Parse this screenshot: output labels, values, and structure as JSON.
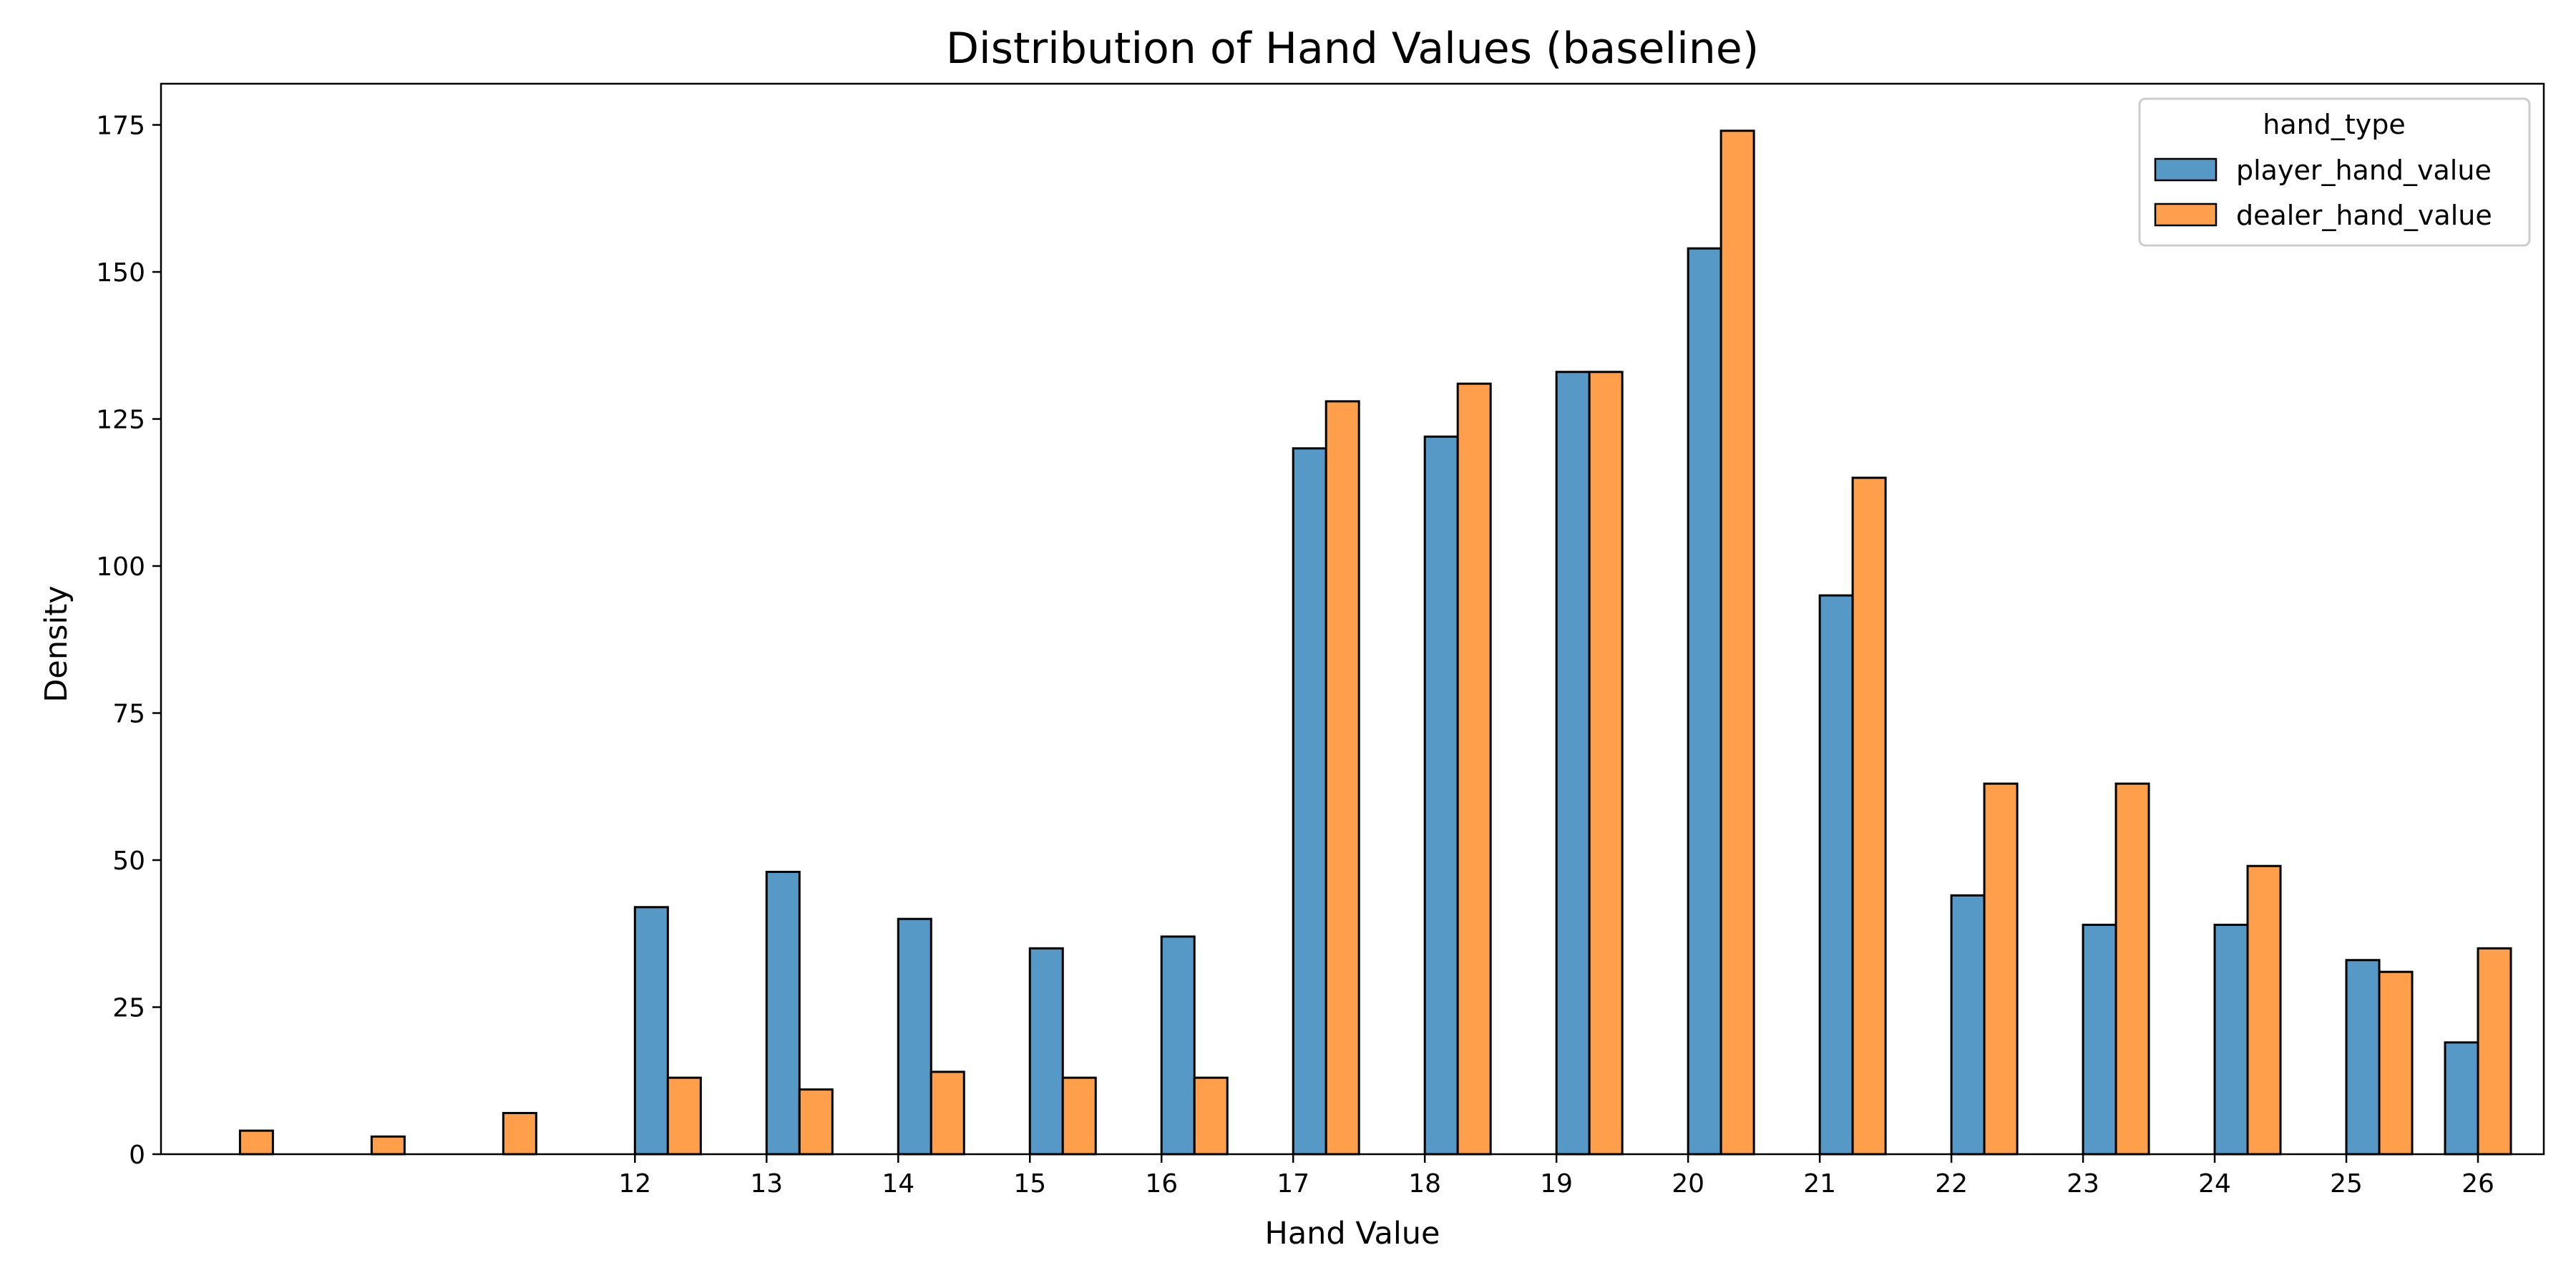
{
  "chart_data": {
    "type": "bar",
    "title": "Distribution of Hand Values (baseline)",
    "xlabel": "Hand Value",
    "ylabel": "Density",
    "xlim": [
      8.4,
      26.5
    ],
    "ylim": [
      0,
      182
    ],
    "xticks": [
      12,
      13,
      14,
      15,
      16,
      17,
      18,
      19,
      20,
      21,
      22,
      23,
      24,
      25,
      26
    ],
    "yticks": [
      0,
      25,
      50,
      75,
      100,
      125,
      150,
      175
    ],
    "bin_width": 0.25,
    "grid": false,
    "legend": {
      "title": "hand_type",
      "placement": "top-right"
    },
    "series": [
      {
        "name": "player_hand_value",
        "color": "#5699c6",
        "bins": [
          {
            "x": 11.75,
            "value": 0
          },
          {
            "x": 12.0,
            "value": 42
          },
          {
            "x": 12.75,
            "value": 0
          },
          {
            "x": 13.0,
            "value": 48
          },
          {
            "x": 13.75,
            "value": 0
          },
          {
            "x": 14.0,
            "value": 40
          },
          {
            "x": 14.75,
            "value": 0
          },
          {
            "x": 15.0,
            "value": 35
          },
          {
            "x": 15.75,
            "value": 0
          },
          {
            "x": 16.0,
            "value": 37
          },
          {
            "x": 17.0,
            "value": 120
          },
          {
            "x": 18.0,
            "value": 122
          },
          {
            "x": 19.0,
            "value": 133
          },
          {
            "x": 20.0,
            "value": 154
          },
          {
            "x": 21.0,
            "value": 95
          },
          {
            "x": 22.0,
            "value": 44
          },
          {
            "x": 23.0,
            "value": 39
          },
          {
            "x": 24.0,
            "value": 39
          },
          {
            "x": 25.0,
            "value": 33
          },
          {
            "x": 25.75,
            "value": 19
          }
        ]
      },
      {
        "name": "dealer_hand_value",
        "color": "#ff9f4b",
        "bins": [
          {
            "x": 8.75,
            "value": 0
          },
          {
            "x": 9.0,
            "value": 4
          },
          {
            "x": 9.25,
            "value": 0
          },
          {
            "x": 9.5,
            "value": 0
          },
          {
            "x": 9.75,
            "value": 0
          },
          {
            "x": 10.0,
            "value": 3
          },
          {
            "x": 10.25,
            "value": 0
          },
          {
            "x": 10.5,
            "value": 0
          },
          {
            "x": 10.75,
            "value": 0
          },
          {
            "x": 11.0,
            "value": 7
          },
          {
            "x": 11.25,
            "value": 0
          },
          {
            "x": 11.5,
            "value": 0
          },
          {
            "x": 12.25,
            "value": 13
          },
          {
            "x": 13.25,
            "value": 11
          },
          {
            "x": 14.25,
            "value": 14
          },
          {
            "x": 15.25,
            "value": 13
          },
          {
            "x": 16.25,
            "value": 13
          },
          {
            "x": 17.25,
            "value": 128
          },
          {
            "x": 18.25,
            "value": 131
          },
          {
            "x": 19.25,
            "value": 133
          },
          {
            "x": 20.25,
            "value": 174
          },
          {
            "x": 21.25,
            "value": 115
          },
          {
            "x": 22.25,
            "value": 63
          },
          {
            "x": 23.25,
            "value": 63
          },
          {
            "x": 24.25,
            "value": 49
          },
          {
            "x": 25.25,
            "value": 31
          },
          {
            "x": 26.0,
            "value": 35
          }
        ]
      }
    ]
  }
}
